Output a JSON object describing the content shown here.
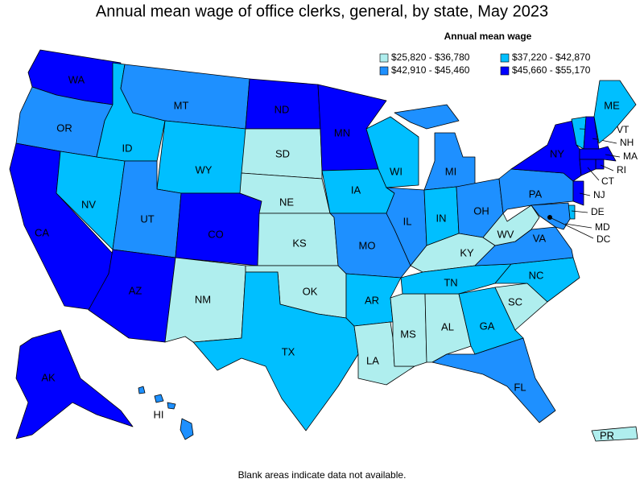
{
  "title": "Annual mean wage of office clerks, general, by state, May 2023",
  "legend": {
    "title": "Annual mean wage",
    "entries": [
      {
        "label": "$25,820 - $36,780",
        "color": "#afeeee"
      },
      {
        "label": "$37,220 - $42,870",
        "color": "#00bfff"
      },
      {
        "label": "$42,910 - $45,460",
        "color": "#1e90ff"
      },
      {
        "label": "$45,660 - $55,170",
        "color": "#0000ff"
      }
    ]
  },
  "states": [
    {
      "label": "WA",
      "color": "#0000ff"
    },
    {
      "label": "OR",
      "color": "#1e90ff"
    },
    {
      "label": "CA",
      "color": "#0000ff"
    },
    {
      "label": "NV",
      "color": "#00bfff"
    },
    {
      "label": "ID",
      "color": "#00bfff"
    },
    {
      "label": "MT",
      "color": "#1e90ff"
    },
    {
      "label": "WY",
      "color": "#00bfff"
    },
    {
      "label": "UT",
      "color": "#1e90ff"
    },
    {
      "label": "CO",
      "color": "#0000ff"
    },
    {
      "label": "AZ",
      "color": "#0000ff"
    },
    {
      "label": "NM",
      "color": "#afeeee"
    },
    {
      "label": "ND",
      "color": "#0000ff"
    },
    {
      "label": "SD",
      "color": "#afeeee"
    },
    {
      "label": "NE",
      "color": "#afeeee"
    },
    {
      "label": "KS",
      "color": "#afeeee"
    },
    {
      "label": "OK",
      "color": "#afeeee"
    },
    {
      "label": "TX",
      "color": "#00bfff"
    },
    {
      "label": "MN",
      "color": "#0000ff"
    },
    {
      "label": "IA",
      "color": "#00bfff"
    },
    {
      "label": "MO",
      "color": "#1e90ff"
    },
    {
      "label": "AR",
      "color": "#00bfff"
    },
    {
      "label": "LA",
      "color": "#afeeee"
    },
    {
      "label": "WI",
      "color": "#00bfff"
    },
    {
      "label": "IL",
      "color": "#1e90ff"
    },
    {
      "label": "MS",
      "color": "#afeeee"
    },
    {
      "label": "AL",
      "color": "#afeeee"
    },
    {
      "label": "MI",
      "color": "#1e90ff"
    },
    {
      "label": "IN",
      "color": "#00bfff"
    },
    {
      "label": "OH",
      "color": "#1e90ff"
    },
    {
      "label": "KY",
      "color": "#afeeee"
    },
    {
      "label": "TN",
      "color": "#00bfff"
    },
    {
      "label": "GA",
      "color": "#00bfff"
    },
    {
      "label": "FL",
      "color": "#1e90ff"
    },
    {
      "label": "SC",
      "color": "#afeeee"
    },
    {
      "label": "NC",
      "color": "#00bfff"
    },
    {
      "label": "VA",
      "color": "#1e90ff"
    },
    {
      "label": "WV",
      "color": "#afeeee"
    },
    {
      "label": "PA",
      "color": "#1e90ff"
    },
    {
      "label": "NY",
      "color": "#0000ff"
    },
    {
      "label": "VT",
      "color": "#00bfff"
    },
    {
      "label": "NH",
      "color": "#0000ff"
    },
    {
      "label": "ME",
      "color": "#00bfff"
    },
    {
      "label": "MA",
      "color": "#0000ff"
    },
    {
      "label": "RI",
      "color": "#0000ff"
    },
    {
      "label": "CT",
      "color": "#0000ff"
    },
    {
      "label": "NJ",
      "color": "#0000ff"
    },
    {
      "label": "DE",
      "color": "#00bfff"
    },
    {
      "label": "MD",
      "color": "#1e90ff"
    },
    {
      "label": "DC",
      "color": "#0000ff"
    },
    {
      "label": "AK",
      "color": "#0000ff"
    },
    {
      "label": "HI",
      "color": "#1e90ff"
    },
    {
      "label": "PR",
      "color": "#afeeee"
    }
  ],
  "footnote": "Blank areas indicate data not available."
}
